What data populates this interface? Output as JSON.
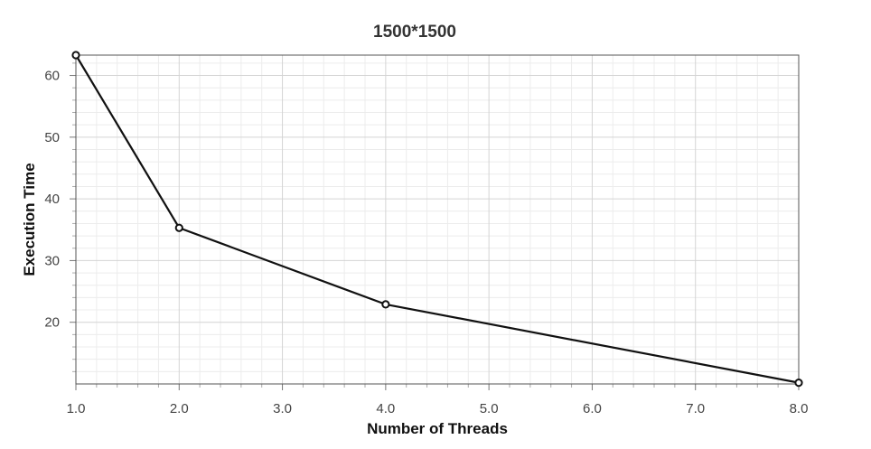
{
  "chart_data": {
    "type": "line",
    "title": "1500*1500",
    "xlabel": "Number of Threads",
    "ylabel": "Execution Time",
    "x": [
      1,
      2,
      4,
      8
    ],
    "series": [
      {
        "values": [
          63.3,
          35.3,
          22.9,
          10.2
        ]
      }
    ],
    "xlim": [
      1.0,
      8.0
    ],
    "ylim": [
      10,
      63.3
    ],
    "xticks": [
      "1.0",
      "2.0",
      "3.0",
      "4.0",
      "5.0",
      "6.0",
      "7.0",
      "8.0"
    ],
    "yticks": [
      "20",
      "30",
      "40",
      "50",
      "60"
    ],
    "grid": true,
    "legend": "none",
    "line_color": "#111111"
  }
}
